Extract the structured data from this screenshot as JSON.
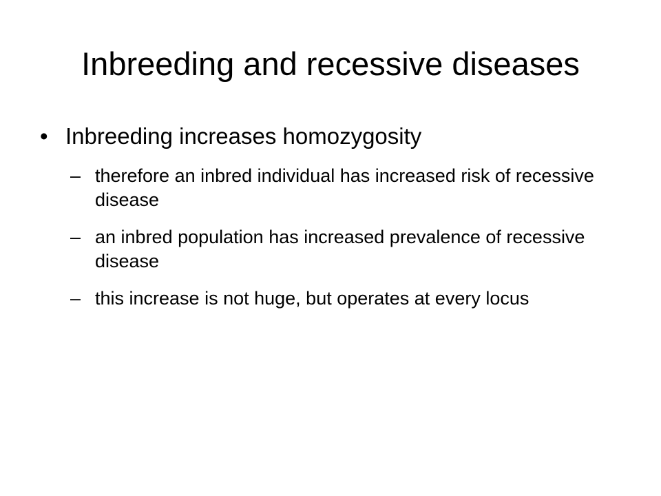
{
  "slide": {
    "title": "Inbreeding and recessive diseases",
    "bullets": [
      {
        "marker": "•",
        "text": "Inbreeding increases homozygosity",
        "sub_marker": "–",
        "sub": [
          "therefore an inbred individual has increased risk of recessive disease",
          "an inbred population has increased prevalence of recessive disease",
          "this increase is not huge, but operates at every locus"
        ]
      }
    ]
  }
}
